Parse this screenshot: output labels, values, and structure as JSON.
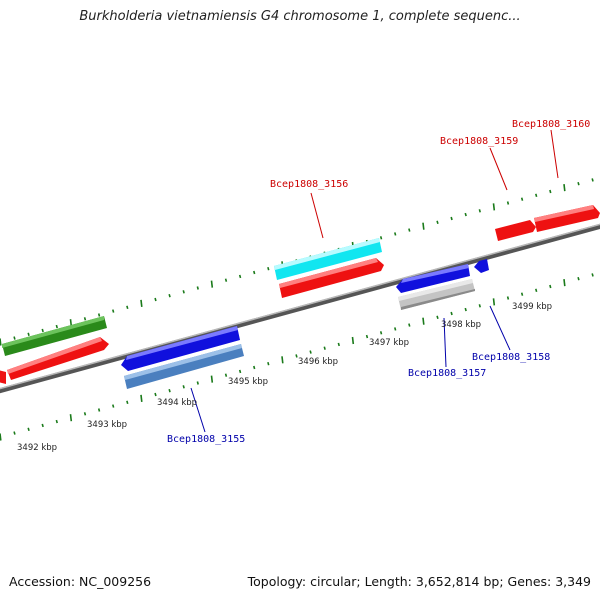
{
  "title": "Burkholderia vietnamiensis G4 chromosome 1, complete sequenc...",
  "footer": {
    "accession": "Accession: NC_009256",
    "summary": "Topology: circular; Length: 3,652,814 bp; Genes: 3,349"
  },
  "colors": {
    "backbone": "#8a8a8a",
    "ticks": "#1a7a1a",
    "label_forward": "#cc0000",
    "label_reverse": "#0000aa",
    "red_gene": "#ee1111",
    "green_gene": "#2a8a1a",
    "cyan_gene": "#11e6f0",
    "blue_gene": "#1010dd",
    "steel_gene": "#4a7fbf",
    "gray_gene": "#c4c4c4"
  },
  "kbp_labels": [
    "3492 kbp",
    "3493 kbp",
    "3494 kbp",
    "3495 kbp",
    "3496 kbp",
    "3497 kbp",
    "3498 kbp",
    "3499 kbp"
  ],
  "gene_labels": {
    "g3156": "Bcep1808_3156",
    "g3159": "Bcep1808_3159",
    "g3160": "Bcep1808_3160",
    "g3155": "Bcep1808_3155",
    "g3157": "Bcep1808_3157",
    "g3158": "Bcep1808_3158"
  }
}
